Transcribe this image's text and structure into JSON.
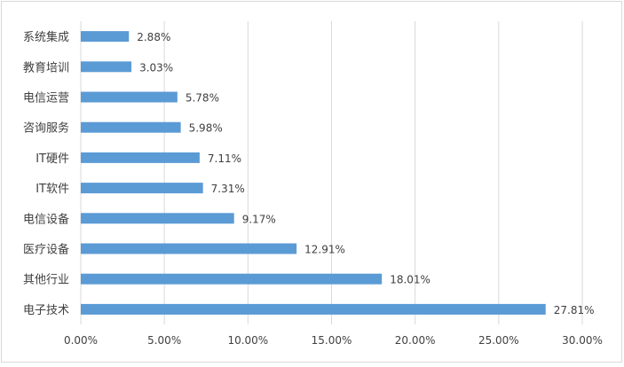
{
  "chart_data": {
    "type": "bar",
    "orientation": "horizontal",
    "title": "",
    "xlabel": "",
    "ylabel": "",
    "categories": [
      "系统集成",
      "教育培训",
      "电信运营",
      "咨询服务",
      "IT硬件",
      "IT软件",
      "电信设备",
      "医疗设备",
      "其他行业",
      "电子技术"
    ],
    "values": [
      2.88,
      3.03,
      5.78,
      5.98,
      7.11,
      7.31,
      9.17,
      12.91,
      18.01,
      27.81
    ],
    "value_labels": [
      "2.88%",
      "3.03%",
      "5.78%",
      "5.98%",
      "7.11%",
      "7.31%",
      "9.17%",
      "12.91%",
      "18.01%",
      "27.81%"
    ],
    "xlim": [
      0,
      30
    ],
    "x_ticks": [
      0,
      5,
      10,
      15,
      20,
      25,
      30
    ],
    "x_tick_labels": [
      "0.00%",
      "5.00%",
      "10.00%",
      "15.00%",
      "20.00%",
      "25.00%",
      "30.00%"
    ],
    "grid": "vertical",
    "legend": "none",
    "bar_color": "#5b9bd5",
    "grid_color": "#d9d9d9",
    "text_color": "#404040"
  }
}
